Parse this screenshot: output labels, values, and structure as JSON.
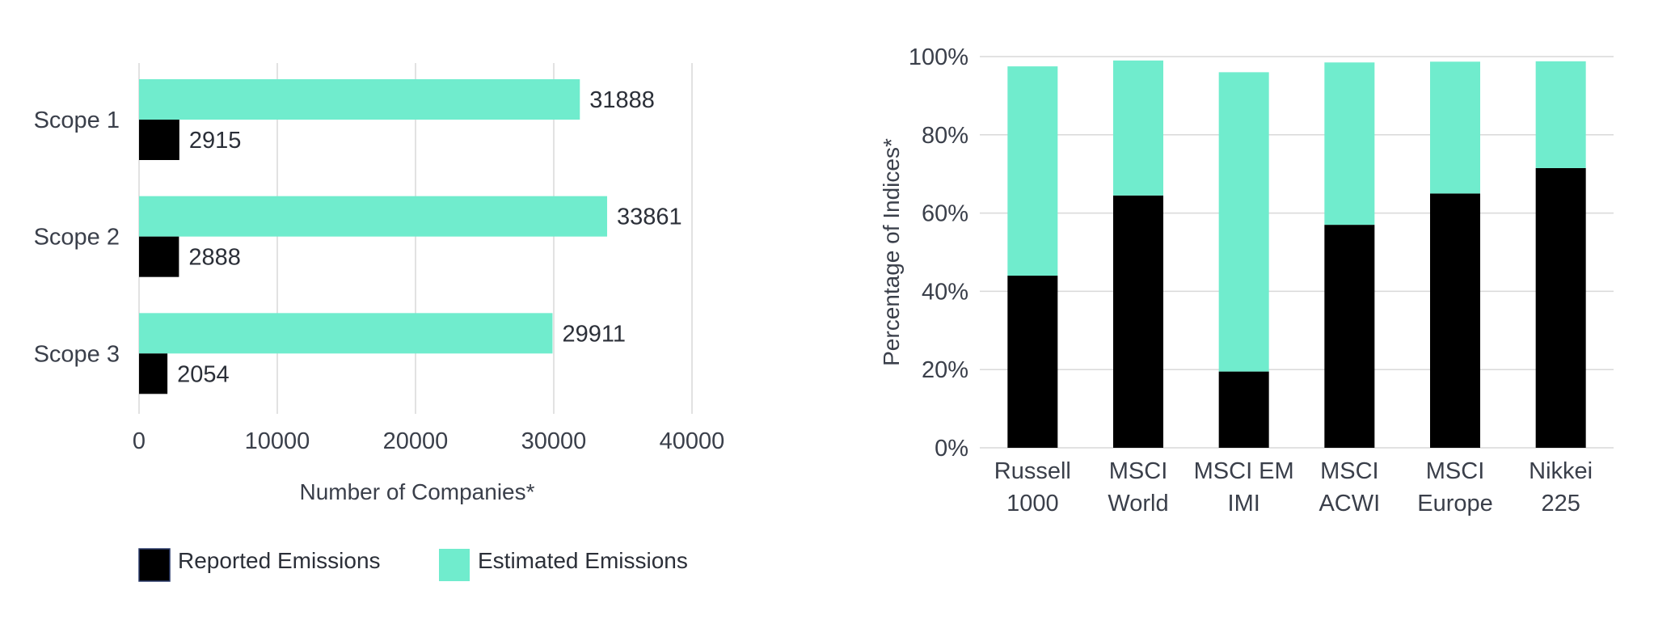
{
  "colors": {
    "reported": "#000000",
    "estimated": "#70ECCD",
    "grid": "#d9d9d9",
    "text": "#3a3f4a"
  },
  "chart_data": [
    {
      "type": "bar",
      "orientation": "horizontal",
      "categories": [
        "Scope 1",
        "Scope 2",
        "Scope 3"
      ],
      "series": [
        {
          "name": "Estimated Emissions",
          "values": [
            31888,
            33861,
            29911
          ]
        },
        {
          "name": "Reported Emissions",
          "values": [
            2915,
            2888,
            2054
          ]
        }
      ],
      "data_labels": [
        [
          "31888",
          "33861",
          "29911"
        ],
        [
          "2915",
          "2888",
          "2054"
        ]
      ],
      "xlabel": "Number of Companies*",
      "ylabel": "",
      "xlim": [
        0,
        40000
      ],
      "xticks": [
        "0",
        "10000",
        "20000",
        "30000",
        "40000"
      ],
      "grid": "vertical",
      "legend": {
        "placement": "bottom",
        "entries": [
          "Reported Emissions",
          "Estimated Emissions"
        ]
      }
    },
    {
      "type": "bar",
      "stacked": true,
      "categories": [
        [
          "Russell",
          "1000"
        ],
        [
          "MSCI",
          "World"
        ],
        [
          "MSCI EM",
          "IMI"
        ],
        [
          "MSCI",
          "ACWI"
        ],
        [
          "MSCI",
          "Europe"
        ],
        [
          "Nikkei",
          "225"
        ]
      ],
      "series": [
        {
          "name": "Reported Emissions",
          "values": [
            44,
            64.5,
            19.5,
            57,
            65,
            71.5
          ]
        },
        {
          "name": "Estimated Emissions",
          "values": [
            53.5,
            34.5,
            76.5,
            41.5,
            33.7,
            27.3
          ]
        }
      ],
      "xlabel": "",
      "ylabel": "Percentage of Indices*",
      "ylim": [
        0,
        100
      ],
      "yticks": [
        "0%",
        "20%",
        "40%",
        "60%",
        "80%",
        "100%"
      ],
      "grid": "horizontal",
      "legend": "none"
    }
  ]
}
